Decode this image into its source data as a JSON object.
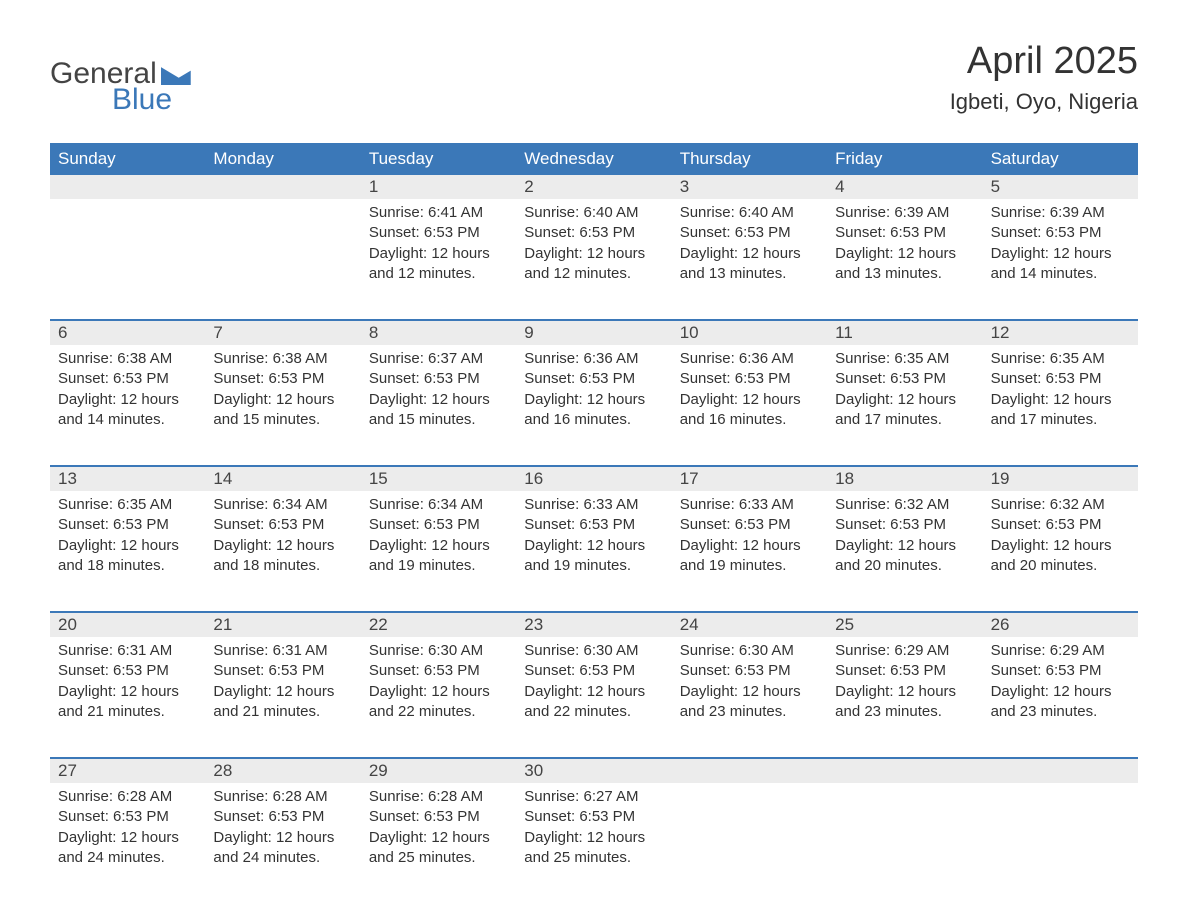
{
  "logo": {
    "word1": "General",
    "word2": "Blue"
  },
  "title": "April 2025",
  "subtitle": "Igbeti, Oyo, Nigeria",
  "calendar": {
    "type": "table",
    "first_weekday": 2,
    "header_bg": "#3b78b8",
    "header_fg": "#ffffff",
    "week_border_color": "#3b78b8",
    "daynum_bg": "#ececec",
    "text_color": "#333333",
    "cell_fontsize": 15,
    "header_fontsize": 17,
    "title_fontsize": 38,
    "subtitle_fontsize": 22,
    "columns": [
      "Sunday",
      "Monday",
      "Tuesday",
      "Wednesday",
      "Thursday",
      "Friday",
      "Saturday"
    ],
    "days": [
      {
        "n": 1,
        "sunrise": "6:41 AM",
        "sunset": "6:53 PM",
        "daylight": "12 hours and 12 minutes."
      },
      {
        "n": 2,
        "sunrise": "6:40 AM",
        "sunset": "6:53 PM",
        "daylight": "12 hours and 12 minutes."
      },
      {
        "n": 3,
        "sunrise": "6:40 AM",
        "sunset": "6:53 PM",
        "daylight": "12 hours and 13 minutes."
      },
      {
        "n": 4,
        "sunrise": "6:39 AM",
        "sunset": "6:53 PM",
        "daylight": "12 hours and 13 minutes."
      },
      {
        "n": 5,
        "sunrise": "6:39 AM",
        "sunset": "6:53 PM",
        "daylight": "12 hours and 14 minutes."
      },
      {
        "n": 6,
        "sunrise": "6:38 AM",
        "sunset": "6:53 PM",
        "daylight": "12 hours and 14 minutes."
      },
      {
        "n": 7,
        "sunrise": "6:38 AM",
        "sunset": "6:53 PM",
        "daylight": "12 hours and 15 minutes."
      },
      {
        "n": 8,
        "sunrise": "6:37 AM",
        "sunset": "6:53 PM",
        "daylight": "12 hours and 15 minutes."
      },
      {
        "n": 9,
        "sunrise": "6:36 AM",
        "sunset": "6:53 PM",
        "daylight": "12 hours and 16 minutes."
      },
      {
        "n": 10,
        "sunrise": "6:36 AM",
        "sunset": "6:53 PM",
        "daylight": "12 hours and 16 minutes."
      },
      {
        "n": 11,
        "sunrise": "6:35 AM",
        "sunset": "6:53 PM",
        "daylight": "12 hours and 17 minutes."
      },
      {
        "n": 12,
        "sunrise": "6:35 AM",
        "sunset": "6:53 PM",
        "daylight": "12 hours and 17 minutes."
      },
      {
        "n": 13,
        "sunrise": "6:35 AM",
        "sunset": "6:53 PM",
        "daylight": "12 hours and 18 minutes."
      },
      {
        "n": 14,
        "sunrise": "6:34 AM",
        "sunset": "6:53 PM",
        "daylight": "12 hours and 18 minutes."
      },
      {
        "n": 15,
        "sunrise": "6:34 AM",
        "sunset": "6:53 PM",
        "daylight": "12 hours and 19 minutes."
      },
      {
        "n": 16,
        "sunrise": "6:33 AM",
        "sunset": "6:53 PM",
        "daylight": "12 hours and 19 minutes."
      },
      {
        "n": 17,
        "sunrise": "6:33 AM",
        "sunset": "6:53 PM",
        "daylight": "12 hours and 19 minutes."
      },
      {
        "n": 18,
        "sunrise": "6:32 AM",
        "sunset": "6:53 PM",
        "daylight": "12 hours and 20 minutes."
      },
      {
        "n": 19,
        "sunrise": "6:32 AM",
        "sunset": "6:53 PM",
        "daylight": "12 hours and 20 minutes."
      },
      {
        "n": 20,
        "sunrise": "6:31 AM",
        "sunset": "6:53 PM",
        "daylight": "12 hours and 21 minutes."
      },
      {
        "n": 21,
        "sunrise": "6:31 AM",
        "sunset": "6:53 PM",
        "daylight": "12 hours and 21 minutes."
      },
      {
        "n": 22,
        "sunrise": "6:30 AM",
        "sunset": "6:53 PM",
        "daylight": "12 hours and 22 minutes."
      },
      {
        "n": 23,
        "sunrise": "6:30 AM",
        "sunset": "6:53 PM",
        "daylight": "12 hours and 22 minutes."
      },
      {
        "n": 24,
        "sunrise": "6:30 AM",
        "sunset": "6:53 PM",
        "daylight": "12 hours and 23 minutes."
      },
      {
        "n": 25,
        "sunrise": "6:29 AM",
        "sunset": "6:53 PM",
        "daylight": "12 hours and 23 minutes."
      },
      {
        "n": 26,
        "sunrise": "6:29 AM",
        "sunset": "6:53 PM",
        "daylight": "12 hours and 23 minutes."
      },
      {
        "n": 27,
        "sunrise": "6:28 AM",
        "sunset": "6:53 PM",
        "daylight": "12 hours and 24 minutes."
      },
      {
        "n": 28,
        "sunrise": "6:28 AM",
        "sunset": "6:53 PM",
        "daylight": "12 hours and 24 minutes."
      },
      {
        "n": 29,
        "sunrise": "6:28 AM",
        "sunset": "6:53 PM",
        "daylight": "12 hours and 25 minutes."
      },
      {
        "n": 30,
        "sunrise": "6:27 AM",
        "sunset": "6:53 PM",
        "daylight": "12 hours and 25 minutes."
      }
    ],
    "labels": {
      "sunrise_prefix": "Sunrise: ",
      "sunset_prefix": "Sunset: ",
      "daylight_prefix": "Daylight: "
    }
  }
}
